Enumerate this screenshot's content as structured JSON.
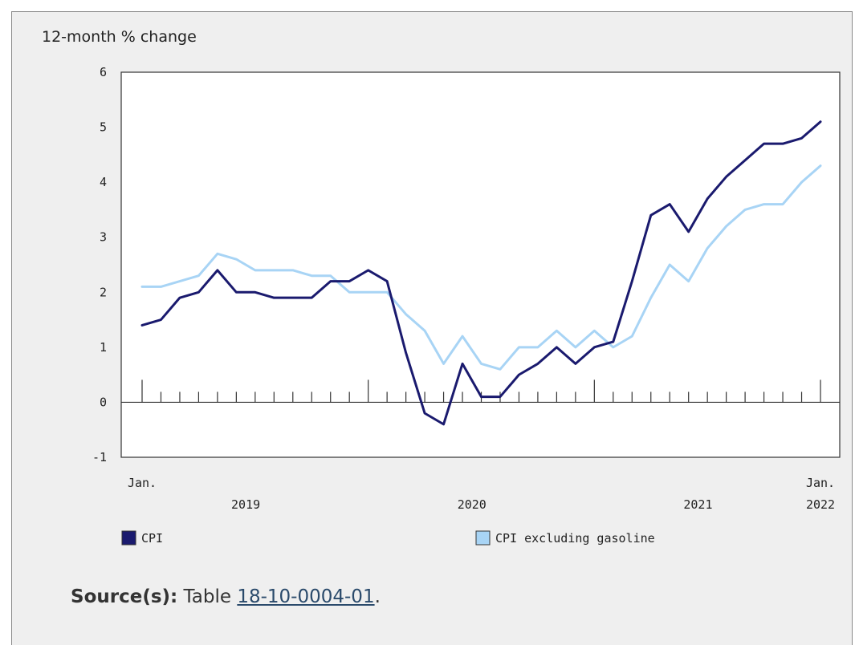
{
  "chart_data": {
    "type": "line",
    "ylabel": "12-month % change",
    "ylim": [
      -1,
      6
    ],
    "yticks": [
      -1,
      0,
      1,
      2,
      3,
      4,
      5,
      6
    ],
    "x_start": "Jan. 2019",
    "x_end": "Jan. 2022",
    "x_first_label": "Jan.",
    "x_last_label": "Jan.",
    "year_labels": [
      "2019",
      "2020",
      "2021",
      "2022"
    ],
    "series": [
      {
        "name": "CPI",
        "color": "#1a1a6e",
        "values": [
          1.4,
          1.5,
          1.9,
          2.0,
          2.4,
          2.0,
          2.0,
          1.9,
          1.9,
          1.9,
          2.2,
          2.2,
          2.4,
          2.2,
          0.9,
          -0.2,
          -0.4,
          0.7,
          0.1,
          0.1,
          0.5,
          0.7,
          1.0,
          0.7,
          1.0,
          1.1,
          2.2,
          3.4,
          3.6,
          3.1,
          3.7,
          4.1,
          4.4,
          4.7,
          4.7,
          4.8,
          5.1
        ]
      },
      {
        "name": "CPI excluding gasoline",
        "color": "#a8d4f5",
        "values": [
          2.1,
          2.1,
          2.2,
          2.3,
          2.7,
          2.6,
          2.4,
          2.4,
          2.4,
          2.3,
          2.3,
          2.0,
          2.0,
          2.0,
          1.6,
          1.3,
          0.7,
          1.2,
          0.7,
          0.6,
          1.0,
          1.0,
          1.3,
          1.0,
          1.3,
          1.0,
          1.2,
          1.9,
          2.5,
          2.2,
          2.8,
          3.2,
          3.5,
          3.6,
          3.6,
          4.0,
          4.3
        ]
      }
    ],
    "grid": false,
    "legend_position": "bottom"
  },
  "source": {
    "label": "Source(s):",
    "text": "Table",
    "link_text": "18-10-0004-01",
    "suffix": "."
  }
}
